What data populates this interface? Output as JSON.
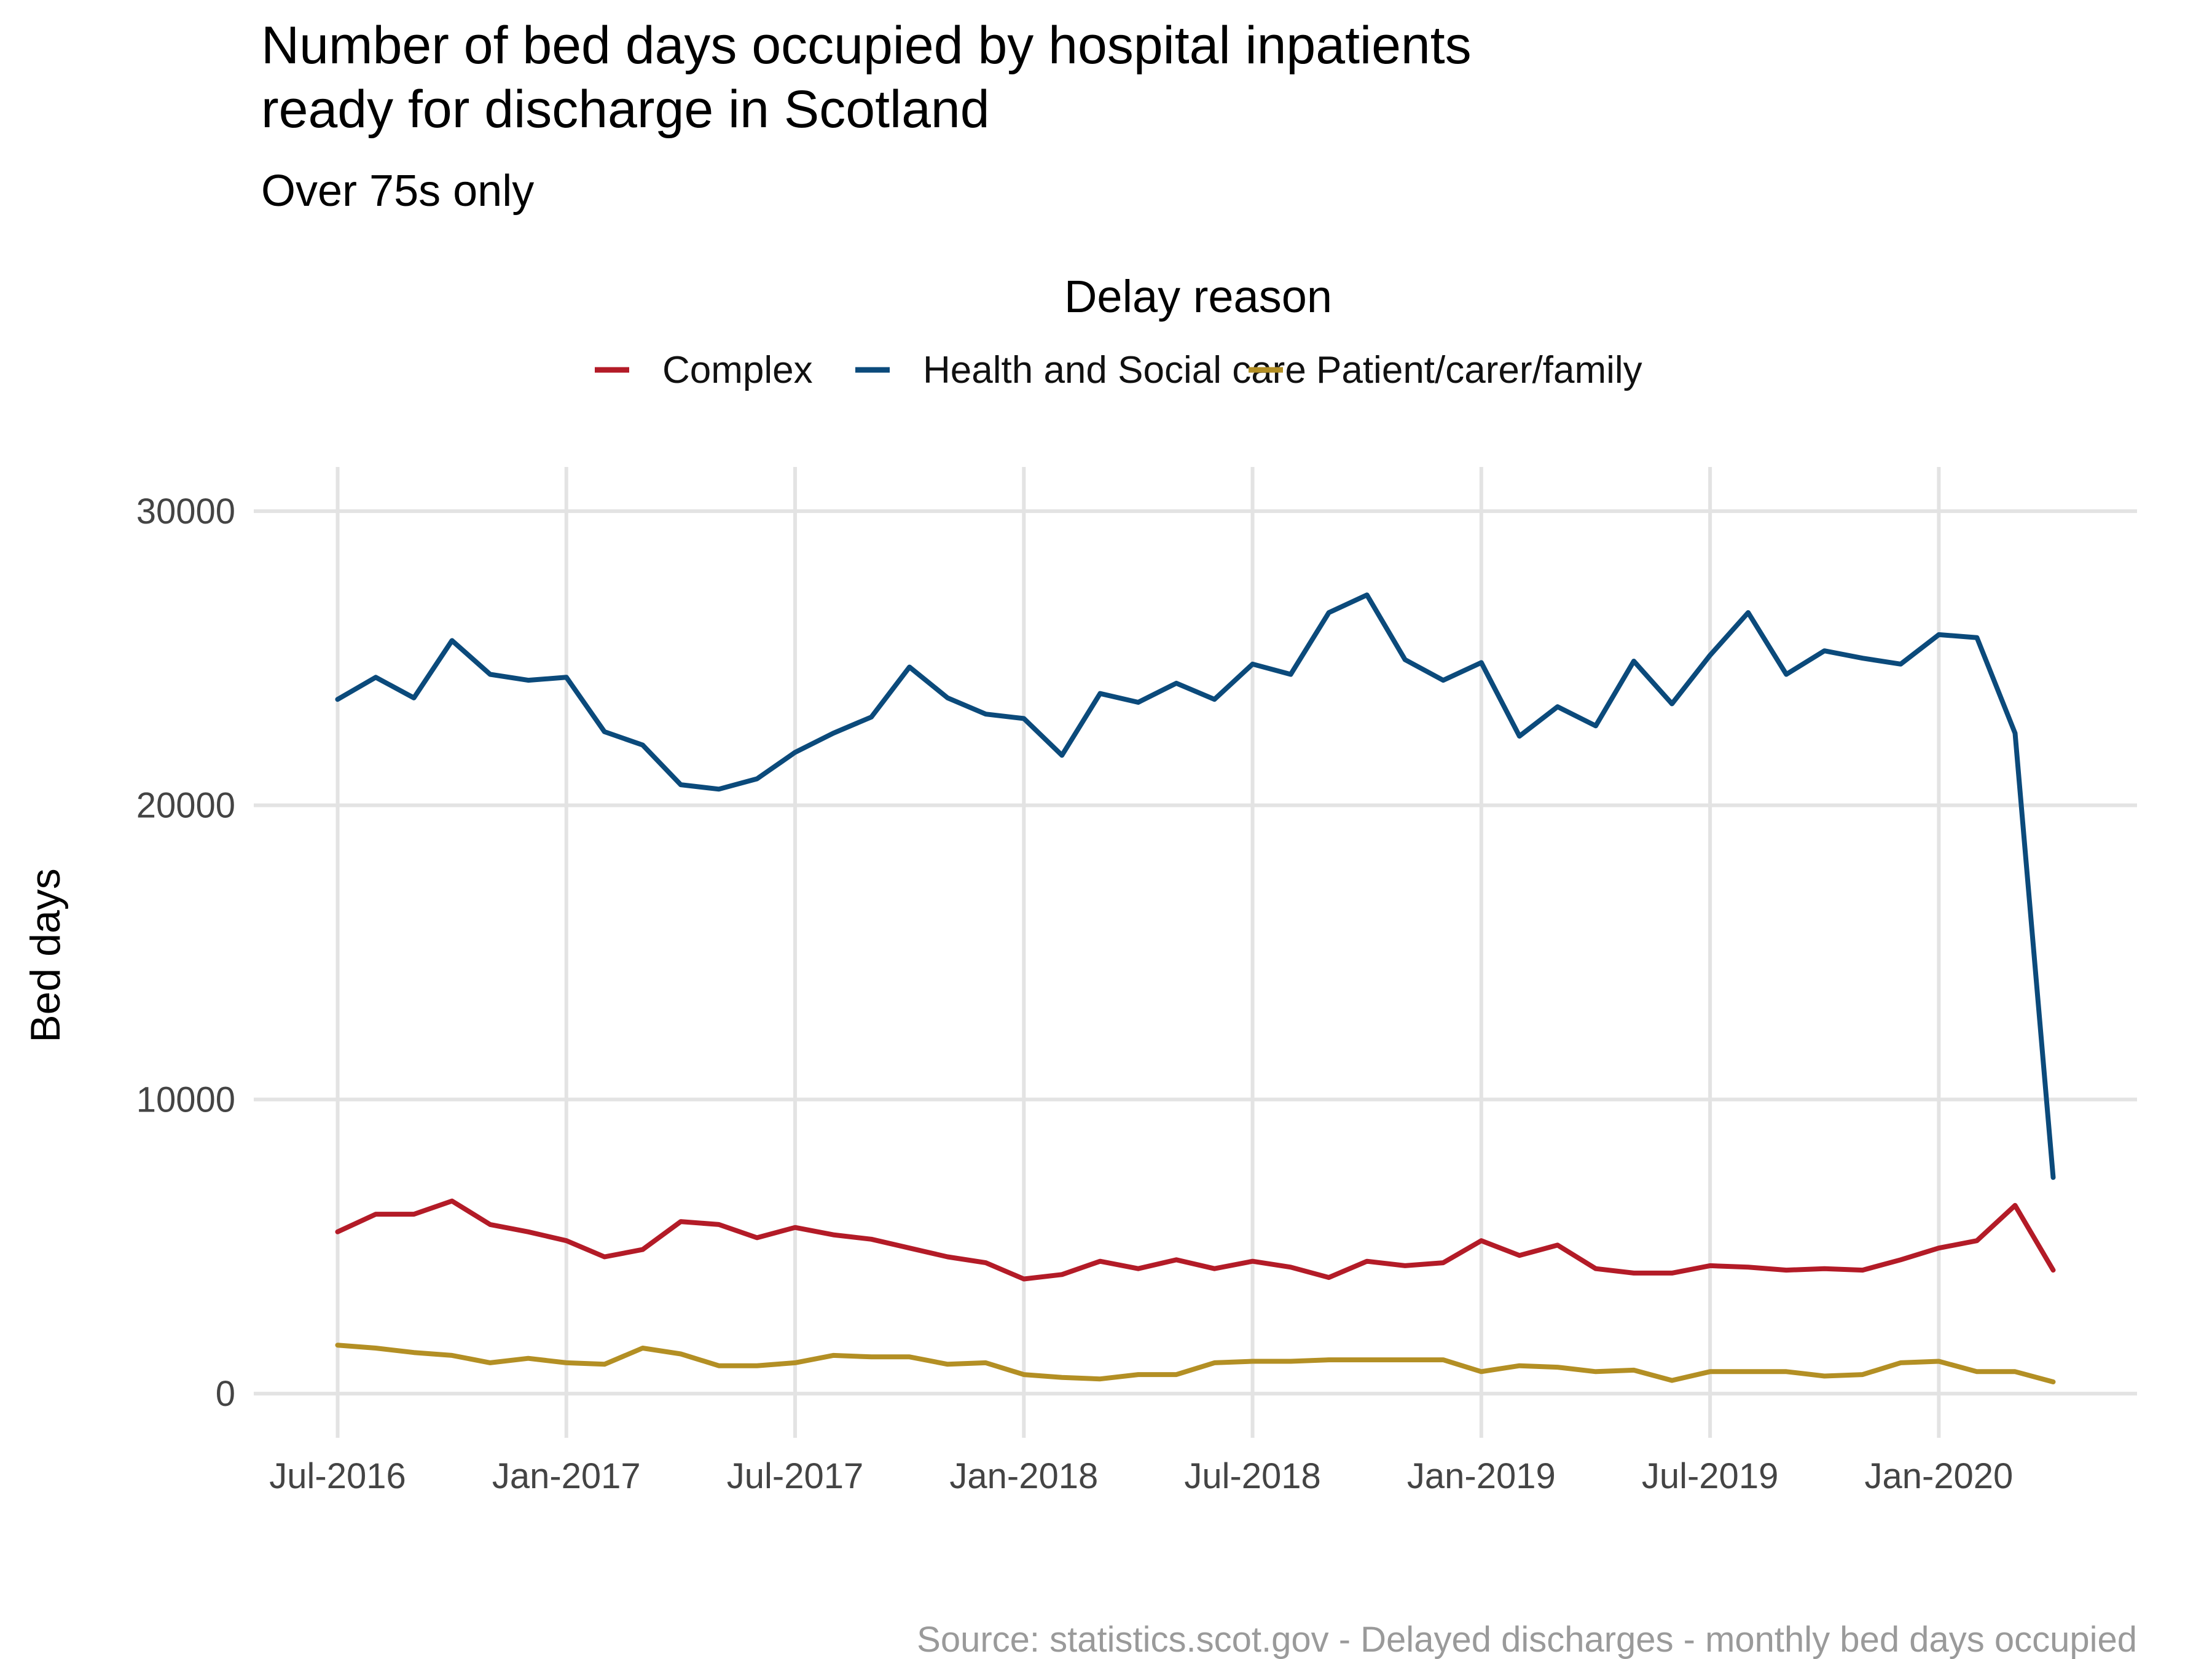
{
  "chart_data": {
    "type": "line",
    "title_line1": "Number of bed days occupied by hospital inpatients",
    "title_line2": "ready for discharge in Scotland",
    "subtitle": "Over 75s only",
    "legend_title": "Delay reason",
    "legend_position": "top",
    "xlabel": "",
    "ylabel": "Bed days",
    "caption": "Source: statistics.scot.gov - Delayed discharges - monthly bed days occupied",
    "grid": true,
    "ylim": [
      -1500,
      31500
    ],
    "y_ticks": [
      0,
      10000,
      20000,
      30000
    ],
    "y_tick_labels": [
      "0",
      "10000",
      "20000",
      "30000"
    ],
    "x_ticks": [
      0,
      6,
      12,
      18,
      24,
      30,
      36,
      42
    ],
    "x_tick_labels": [
      "Jul-2016",
      "Jan-2017",
      "Jul-2017",
      "Jan-2018",
      "Jul-2018",
      "Jan-2019",
      "Jul-2019",
      "Jan-2020"
    ],
    "x_range": [
      -2.2,
      47.2
    ],
    "x": [
      "2016-07",
      "2016-08",
      "2016-09",
      "2016-10",
      "2016-11",
      "2016-12",
      "2017-01",
      "2017-02",
      "2017-03",
      "2017-04",
      "2017-05",
      "2017-06",
      "2017-07",
      "2017-08",
      "2017-09",
      "2017-10",
      "2017-11",
      "2017-12",
      "2018-01",
      "2018-02",
      "2018-03",
      "2018-04",
      "2018-05",
      "2018-06",
      "2018-07",
      "2018-08",
      "2018-09",
      "2018-10",
      "2018-11",
      "2018-12",
      "2019-01",
      "2019-02",
      "2019-03",
      "2019-04",
      "2019-05",
      "2019-06",
      "2019-07",
      "2019-08",
      "2019-09",
      "2019-10",
      "2019-11",
      "2019-12",
      "2020-01",
      "2020-02",
      "2020-03",
      "2020-04"
    ],
    "series": [
      {
        "name": "Complex",
        "color": "#b31b27",
        "values": [
          5500,
          6100,
          6100,
          6550,
          5750,
          5500,
          5200,
          4650,
          4900,
          5850,
          5750,
          5300,
          5650,
          5400,
          5250,
          4950,
          4650,
          4450,
          3900,
          4050,
          4500,
          4250,
          4550,
          4250,
          4500,
          4300,
          3950,
          4500,
          4350,
          4450,
          5200,
          4700,
          5050,
          4250,
          4100,
          4100,
          4350,
          4300,
          4200,
          4250,
          4200,
          4550,
          4950,
          5200,
          6400,
          4200
        ]
      },
      {
        "name": "Health and Social care",
        "color": "#0b4a7b",
        "values": [
          23600,
          24350,
          23650,
          25600,
          24450,
          24250,
          24350,
          22500,
          22050,
          20700,
          20550,
          20900,
          21800,
          22450,
          23000,
          24700,
          23650,
          23100,
          22950,
          21700,
          23800,
          23500,
          24150,
          23600,
          24800,
          24450,
          26550,
          27150,
          24950,
          24250,
          24850,
          22350,
          23350,
          22700,
          24900,
          23450,
          25100,
          26550,
          24450,
          25250,
          25000,
          24800,
          25800,
          25700,
          22450,
          7350
        ]
      },
      {
        "name": "Patient/carer/family",
        "color": "#b38f24",
        "values": [
          1650,
          1550,
          1400,
          1300,
          1050,
          1200,
          1050,
          1000,
          1550,
          1350,
          950,
          950,
          1050,
          1300,
          1250,
          1250,
          1000,
          1050,
          650,
          550,
          500,
          650,
          650,
          1050,
          1100,
          1100,
          1150,
          1150,
          1150,
          1150,
          750,
          950,
          900,
          750,
          800,
          450,
          750,
          750,
          750,
          600,
          650,
          1050,
          1100,
          750,
          750,
          400
        ]
      }
    ]
  }
}
